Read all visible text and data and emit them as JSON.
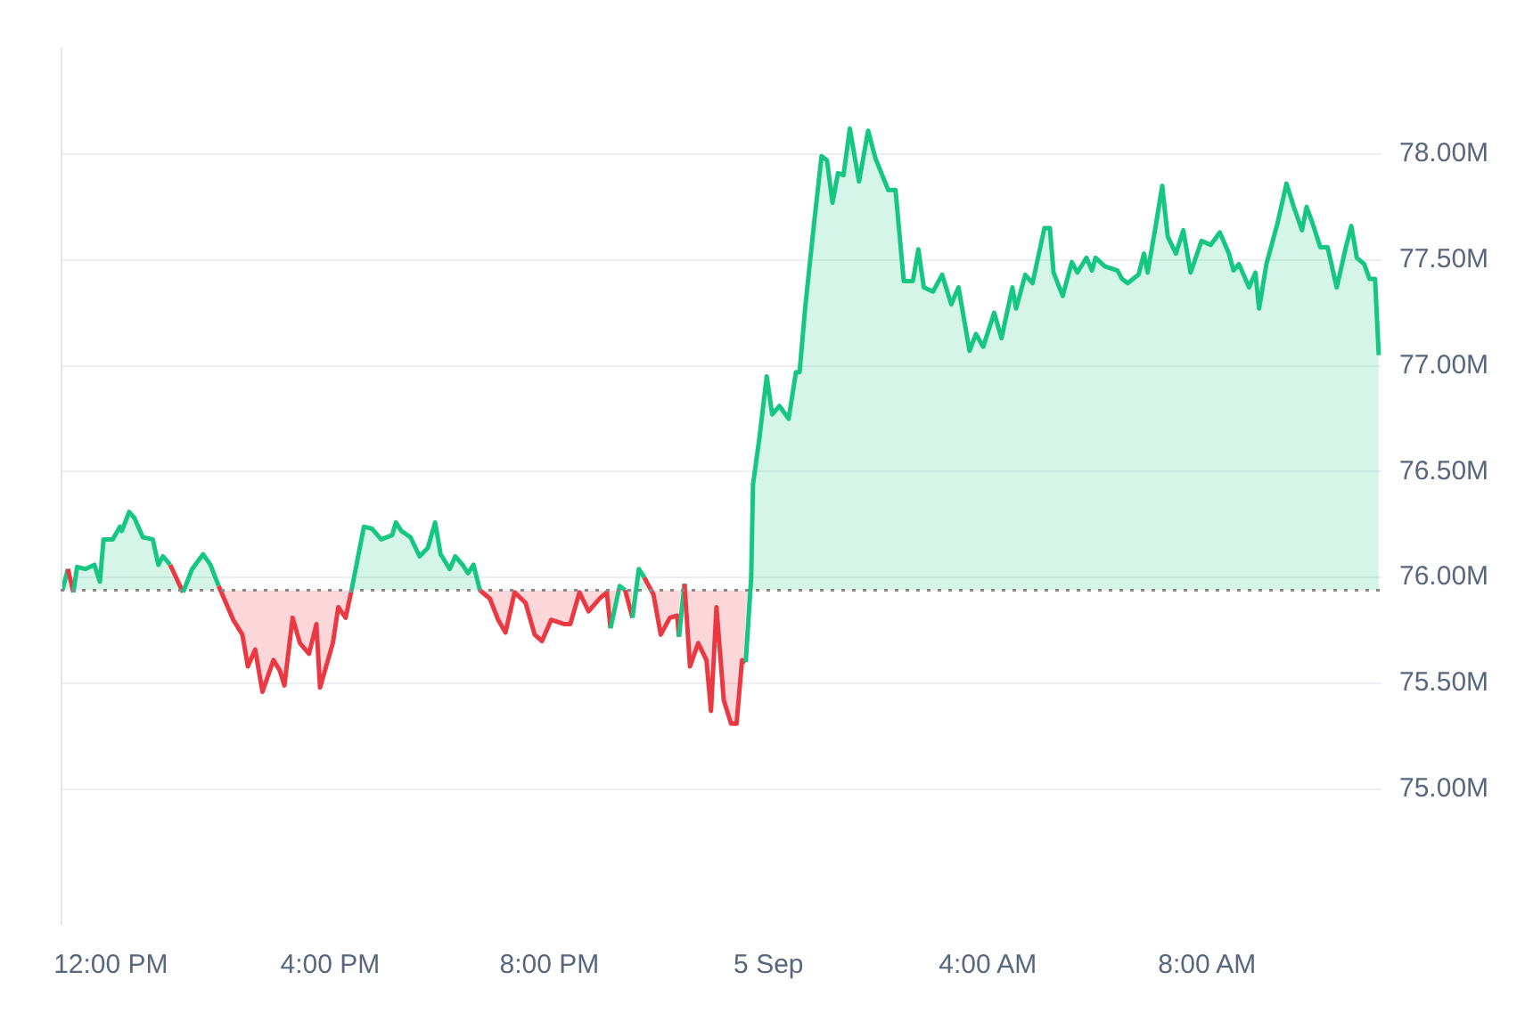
{
  "chart_data": {
    "type": "area",
    "x": [
      "--09-04T11:07",
      "--09-04T11:13",
      "--09-04T11:19",
      "--09-04T11:23",
      "--09-04T11:32",
      "--09-04T11:42",
      "--09-04T11:48",
      "--09-04T11:52",
      "--09-04T12:02",
      "--09-04T12:10",
      "--09-04T12:12",
      "--09-04T12:20",
      "--09-04T12:26",
      "--09-04T12:35",
      "--09-04T12:46",
      "--09-04T12:52",
      "--09-04T12:57",
      "--09-04T13:05",
      "--09-04T13:19",
      "--09-04T13:29",
      "--09-04T13:41",
      "--09-04T13:49",
      "--09-04T13:58",
      "--09-04T14:14",
      "--09-04T14:24",
      "--09-04T14:30",
      "--09-04T14:38",
      "--09-04T14:46",
      "--09-04T14:58",
      "--09-04T15:05",
      "--09-04T15:10",
      "--09-04T15:19",
      "--09-04T15:27",
      "--09-04T15:37",
      "--09-04T15:45",
      "--09-04T15:49",
      "--09-04T16:03",
      "--09-04T16:09",
      "--09-04T16:17",
      "--09-04T16:23",
      "--09-04T16:28",
      "--09-04T16:37",
      "--09-04T16:46",
      "--09-04T16:56",
      "--09-04T17:08",
      "--09-04T17:12",
      "--09-04T17:18",
      "--09-04T17:28",
      "--09-04T17:38",
      "--09-04T17:47",
      "--09-04T17:55",
      "--09-04T18:01",
      "--09-04T18:11",
      "--09-04T18:17",
      "--09-04T18:25",
      "--09-04T18:31",
      "--09-04T18:37",
      "--09-04T18:44",
      "--09-04T18:55",
      "--09-04T19:04",
      "--09-04T19:12",
      "--09-04T19:22",
      "--09-04T19:34",
      "--09-04T19:44",
      "--09-04T19:52",
      "--09-04T20:02",
      "--09-04T20:16",
      "--09-04T20:23",
      "--09-04T20:33",
      "--09-04T20:43",
      "--09-04T20:55",
      "--09-04T21:03",
      "--09-04T21:07",
      "--09-04T21:17",
      "--09-04T21:23",
      "--09-04T21:31",
      "--09-04T21:38",
      "--09-04T21:44",
      "--09-04T21:54",
      "--09-04T22:02",
      "--09-04T22:12",
      "--09-04T22:20",
      "--09-04T22:22",
      "--09-04T22:28",
      "--09-04T22:34",
      "--09-04T22:43",
      "--09-04T22:52",
      "--09-04T22:57",
      "--09-04T23:03",
      "--09-04T23:11",
      "--09-04T23:19",
      "--09-04T23:25",
      "--09-04T23:31",
      "--09-04T23:35",
      "--09-04T23:41",
      "--09-04T23:43",
      "--09-04T23:50",
      "--09-04T23:58",
      "--09-05T00:04",
      "--09-05T00:12",
      "--09-05T00:22",
      "--09-05T00:30",
      "--09-05T00:34",
      "--09-05T00:40",
      "--09-05T00:50",
      "--09-05T00:58",
      "--09-05T01:04",
      "--09-05T01:10",
      "--09-05T01:16",
      "--09-05T01:22",
      "--09-05T01:29",
      "--09-05T01:39",
      "--09-05T01:49",
      "--09-05T01:57",
      "--09-05T02:11",
      "--09-05T02:19",
      "--09-05T02:28",
      "--09-05T02:38",
      "--09-05T02:44",
      "--09-05T02:50",
      "--09-05T03:00",
      "--09-05T03:10",
      "--09-05T03:20",
      "--09-05T03:28",
      "--09-05T03:40",
      "--09-05T03:47",
      "--09-05T03:55",
      "--09-05T04:07",
      "--09-05T04:15",
      "--09-05T04:27",
      "--09-05T04:31",
      "--09-05T04:41",
      "--09-05T04:49",
      "--09-05T05:02",
      "--09-05T05:08",
      "--09-05T05:12",
      "--09-05T05:22",
      "--09-05T05:32",
      "--09-05T05:38",
      "--09-05T05:48",
      "--09-05T05:54",
      "--09-05T05:58",
      "--09-05T06:08",
      "--09-05T06:22",
      "--09-05T06:27",
      "--09-05T06:33",
      "--09-05T06:45",
      "--09-05T06:51",
      "--09-05T06:55",
      "--09-05T07:03",
      "--09-05T07:11",
      "--09-05T07:17",
      "--09-05T07:26",
      "--09-05T07:34",
      "--09-05T07:42",
      "--09-05T07:54",
      "--09-05T08:04",
      "--09-05T08:14",
      "--09-05T08:24",
      "--09-05T08:29",
      "--09-05T08:35",
      "--09-05T08:46",
      "--09-05T08:53",
      "--09-05T08:57",
      "--09-05T09:05",
      "--09-05T09:17",
      "--09-05T09:27",
      "--09-05T09:35",
      "--09-05T09:44",
      "--09-05T09:49",
      "--09-05T09:55",
      "--09-05T10:04",
      "--09-05T10:12",
      "--09-05T10:22",
      "--09-05T10:32",
      "--09-05T10:38",
      "--09-05T10:44",
      "--09-05T10:52",
      "--09-05T10:58",
      "--09-05T11:04",
      "--09-05T11:08"
    ],
    "series": [
      {
        "color": "#16c784",
        "values": [
          75.94,
          76.04,
          75.93,
          76.05,
          76.04,
          76.06,
          75.98,
          76.18,
          76.18,
          76.24,
          76.22,
          76.31,
          76.28,
          76.19,
          76.18,
          76.06,
          76.1,
          76.06,
          75.93,
          76.04,
          76.11,
          76.06,
          75.96,
          75.8,
          75.73,
          75.58,
          75.66,
          75.46,
          75.61,
          75.56,
          75.49,
          75.81,
          75.69,
          75.64,
          75.78,
          75.48,
          75.69,
          75.86,
          75.81,
          75.93,
          76.04,
          76.24,
          76.23,
          76.18,
          76.2,
          76.26,
          76.22,
          76.19,
          76.1,
          76.14,
          76.26,
          76.11,
          76.04,
          76.1,
          76.06,
          76.02,
          76.06,
          75.94,
          75.9,
          75.8,
          75.74,
          75.93,
          75.88,
          75.73,
          75.7,
          75.8,
          75.78,
          75.78,
          75.93,
          75.84,
          75.9,
          75.93,
          75.76,
          75.96,
          75.94,
          75.81,
          76.04,
          76.0,
          75.92,
          75.73,
          75.81,
          75.82,
          75.72,
          75.97,
          75.58,
          75.69,
          75.61,
          75.37,
          75.86,
          75.42,
          75.31,
          75.31,
          75.61,
          75.6,
          76.0,
          76.44,
          76.66,
          76.95,
          76.77,
          76.81,
          76.75,
          76.97,
          76.97,
          77.27,
          77.68,
          77.99,
          77.97,
          77.77,
          77.91,
          77.9,
          78.12,
          77.87,
          78.11,
          77.98,
          77.83,
          77.83,
          77.4,
          77.4,
          77.55,
          77.37,
          77.35,
          77.43,
          77.29,
          77.37,
          77.07,
          77.15,
          77.09,
          77.25,
          77.13,
          77.37,
          77.27,
          77.43,
          77.39,
          77.65,
          77.65,
          77.44,
          77.33,
          77.49,
          77.44,
          77.51,
          77.45,
          77.51,
          77.47,
          77.45,
          77.41,
          77.39,
          77.43,
          77.53,
          77.44,
          77.64,
          77.85,
          77.61,
          77.53,
          77.64,
          77.44,
          77.59,
          77.57,
          77.63,
          77.53,
          77.45,
          77.48,
          77.37,
          77.44,
          77.27,
          77.48,
          77.67,
          77.86,
          77.75,
          77.64,
          77.75,
          77.68,
          77.56,
          77.56,
          77.37,
          77.56,
          77.66,
          77.51,
          77.48,
          77.41,
          77.41,
          77.05
        ],
        "colors": [
          "#16c784",
          "#16c784",
          "#ea3943",
          "#16c784",
          "#16c784",
          "#16c784",
          "#16c784",
          "#16c784",
          "#16c784",
          "#16c784",
          "#16c784",
          "#16c784",
          "#16c784",
          "#16c784",
          "#16c784",
          "#16c784",
          "#16c784",
          "#16c784",
          "#ea3943",
          "#16c784",
          "#16c784",
          "#16c784",
          "#16c784",
          "#ea3943",
          "#ea3943",
          "#ea3943",
          "#ea3943",
          "#ea3943",
          "#ea3943",
          "#ea3943",
          "#ea3943",
          "#ea3943",
          "#ea3943",
          "#ea3943",
          "#ea3943",
          "#ea3943",
          "#ea3943",
          "#ea3943",
          "#ea3943",
          "#ea3943",
          "#16c784",
          "#16c784",
          "#16c784",
          "#16c784",
          "#16c784",
          "#16c784",
          "#16c784",
          "#16c784",
          "#16c784",
          "#16c784",
          "#16c784",
          "#16c784",
          "#16c784",
          "#16c784",
          "#16c784",
          "#16c784",
          "#16c784",
          "#16c784",
          "#ea3943",
          "#ea3943",
          "#ea3943",
          "#ea3943",
          "#ea3943",
          "#ea3943",
          "#ea3943",
          "#ea3943",
          "#ea3943",
          "#ea3943",
          "#ea3943",
          "#ea3943",
          "#ea3943",
          "#ea3943",
          "#ea3943",
          "#16c784",
          "#16c784",
          "#ea3943",
          "#16c784",
          "#16c784",
          "#ea3943",
          "#ea3943",
          "#ea3943",
          "#ea3943",
          "#ea3943",
          "#16c784",
          "#ea3943",
          "#ea3943",
          "#ea3943",
          "#ea3943",
          "#ea3943",
          "#ea3943",
          "#ea3943",
          "#ea3943",
          "#ea3943",
          "#ea3943",
          "#16c784",
          "#16c784",
          "#16c784",
          "#16c784",
          "#16c784",
          "#16c784",
          "#16c784",
          "#16c784",
          "#16c784",
          "#16c784",
          "#16c784",
          "#16c784",
          "#16c784",
          "#16c784",
          "#16c784",
          "#16c784",
          "#16c784",
          "#16c784",
          "#16c784",
          "#16c784",
          "#16c784",
          "#16c784",
          "#16c784",
          "#16c784",
          "#16c784",
          "#16c784",
          "#16c784",
          "#16c784",
          "#16c784",
          "#16c784",
          "#16c784",
          "#16c784",
          "#16c784",
          "#16c784",
          "#16c784",
          "#16c784",
          "#16c784",
          "#16c784",
          "#16c784",
          "#16c784",
          "#16c784",
          "#16c784",
          "#16c784",
          "#16c784",
          "#16c784",
          "#16c784",
          "#16c784",
          "#16c784",
          "#16c784",
          "#16c784",
          "#16c784",
          "#16c784",
          "#16c784",
          "#16c784",
          "#16c784",
          "#16c784",
          "#16c784",
          "#16c784",
          "#16c784",
          "#16c784",
          "#16c784",
          "#16c784",
          "#16c784",
          "#16c784",
          "#16c784",
          "#16c784",
          "#16c784",
          "#16c784",
          "#16c784",
          "#16c784",
          "#16c784",
          "#16c784",
          "#16c784",
          "#16c784",
          "#16c784",
          "#16c784",
          "#16c784",
          "#16c784",
          "#16c784",
          "#16c784",
          "#16c784",
          "#16c784",
          "#16c784",
          "#16c784",
          "#16c784",
          "#16c784",
          "#16c784"
        ]
      }
    ],
    "xlim": [
      "--09-04T11:05",
      "--09-05T11:11"
    ],
    "xticks": [
      {
        "value": "--09-04T12:00",
        "label": "12:00 PM"
      },
      {
        "value": "--09-04T16:00",
        "label": "4:00 PM"
      },
      {
        "value": "--09-04T20:00",
        "label": "8:00 PM"
      },
      {
        "value": "--09-05T00:00",
        "label": "5 Sep"
      },
      {
        "value": "--09-05T04:00",
        "label": "4:00 AM"
      },
      {
        "value": "--09-05T08:00",
        "label": "8:00 AM"
      }
    ],
    "ylim": [
      74.36,
      78.5
    ],
    "yticks": [
      {
        "value": 75,
        "label": "75.00M"
      },
      {
        "value": 75.5,
        "label": "75.50M"
      },
      {
        "value": 76,
        "label": "76.00M"
      },
      {
        "value": 76.5,
        "label": "76.50M"
      },
      {
        "value": 77,
        "label": "77.00M"
      },
      {
        "value": 77.5,
        "label": "77.50M"
      },
      {
        "value": 78,
        "label": "78.00M"
      }
    ],
    "ref_lines": [
      {
        "axis": "y",
        "value": 75.94,
        "color": "#888888",
        "line_style": "dotted"
      }
    ],
    "grid": "y",
    "marker": "none",
    "line_style": "solid"
  }
}
